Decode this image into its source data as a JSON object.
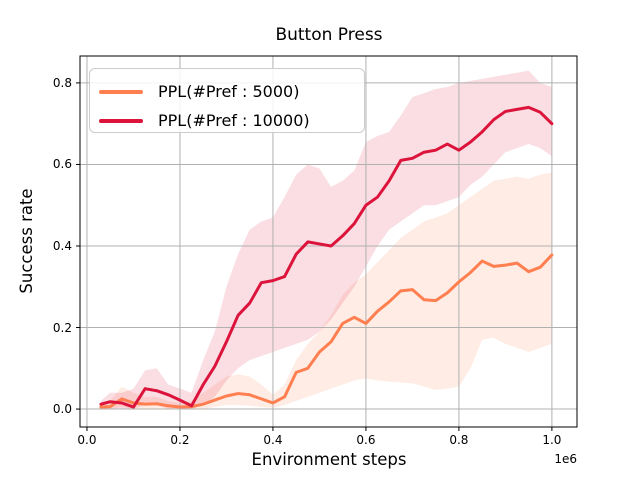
{
  "chart_data": {
    "type": "line",
    "title": "Button Press",
    "xlabel": "Environment steps",
    "ylabel": "Success rate",
    "x_offset_label": "1e6",
    "x_units": "millions of environment steps",
    "xlim": [
      -0.015,
      1.054
    ],
    "ylim": [
      -0.044,
      0.866
    ],
    "xticks": {
      "values": [
        0.0,
        0.2,
        0.4,
        0.6,
        0.8,
        1.0
      ],
      "labels": [
        "0.0",
        "0.2",
        "0.4",
        "0.6",
        "0.8",
        "1.0"
      ]
    },
    "yticks": {
      "values": [
        0.0,
        0.2,
        0.4,
        0.6,
        0.8
      ],
      "labels": [
        "0.0",
        "0.2",
        "0.4",
        "0.6",
        "0.8"
      ]
    },
    "grid": true,
    "grid_color": "#b0b0b0",
    "spine_color": "#000000",
    "legend": {
      "position": "upper left"
    },
    "x": [
      0.03,
      0.05,
      0.075,
      0.1,
      0.125,
      0.15,
      0.175,
      0.2,
      0.225,
      0.25,
      0.275,
      0.3,
      0.325,
      0.35,
      0.375,
      0.4,
      0.425,
      0.45,
      0.475,
      0.5,
      0.525,
      0.55,
      0.575,
      0.6,
      0.625,
      0.65,
      0.675,
      0.7,
      0.725,
      0.75,
      0.775,
      0.8,
      0.825,
      0.85,
      0.875,
      0.9,
      0.925,
      0.95,
      0.975,
      1.0
    ],
    "series": [
      {
        "name": "PPL(#Pref : 5000)",
        "color": "#FF7F50",
        "band_alpha": 0.15,
        "y": [
          0.005,
          0.006,
          0.025,
          0.015,
          0.012,
          0.013,
          0.008,
          0.005,
          0.006,
          0.012,
          0.022,
          0.032,
          0.038,
          0.035,
          0.025,
          0.015,
          0.03,
          0.09,
          0.1,
          0.14,
          0.165,
          0.21,
          0.225,
          0.21,
          0.24,
          0.263,
          0.29,
          0.293,
          0.268,
          0.266,
          0.285,
          0.312,
          0.335,
          0.363,
          0.35,
          0.353,
          0.358,
          0.337,
          0.348,
          0.378
        ],
        "band_low": [
          0.0,
          0.0,
          0.005,
          0.0,
          0.0,
          0.0,
          0.0,
          0.0,
          0.0,
          0.0,
          0.005,
          0.01,
          0.01,
          0.008,
          0.005,
          0.003,
          0.01,
          0.02,
          0.03,
          0.04,
          0.05,
          0.06,
          0.07,
          0.075,
          0.07,
          0.067,
          0.065,
          0.063,
          0.055,
          0.047,
          0.05,
          0.055,
          0.1,
          0.17,
          0.175,
          0.16,
          0.15,
          0.14,
          0.15,
          0.16
        ],
        "band_high": [
          0.01,
          0.02,
          0.055,
          0.04,
          0.03,
          0.03,
          0.02,
          0.015,
          0.02,
          0.04,
          0.06,
          0.08,
          0.085,
          0.08,
          0.06,
          0.035,
          0.06,
          0.12,
          0.16,
          0.19,
          0.23,
          0.28,
          0.31,
          0.33,
          0.36,
          0.39,
          0.42,
          0.44,
          0.46,
          0.47,
          0.48,
          0.5,
          0.52,
          0.54,
          0.56,
          0.565,
          0.57,
          0.565,
          0.575,
          0.58
        ]
      },
      {
        "name": "PPL(#Pref : 10000)",
        "color": "#DC143C",
        "band_alpha": 0.14,
        "y": [
          0.012,
          0.018,
          0.015,
          0.005,
          0.05,
          0.045,
          0.035,
          0.022,
          0.008,
          0.06,
          0.105,
          0.165,
          0.23,
          0.26,
          0.31,
          0.315,
          0.325,
          0.38,
          0.41,
          0.405,
          0.4,
          0.425,
          0.455,
          0.5,
          0.52,
          0.56,
          0.61,
          0.615,
          0.63,
          0.635,
          0.65,
          0.635,
          0.655,
          0.68,
          0.71,
          0.73,
          0.735,
          0.74,
          0.728,
          0.7
        ],
        "band_low": [
          0.0,
          0.0,
          0.0,
          0.0,
          0.01,
          0.01,
          0.0,
          0.0,
          0.0,
          0.01,
          0.03,
          0.07,
          0.1,
          0.12,
          0.13,
          0.14,
          0.15,
          0.16,
          0.17,
          0.19,
          0.22,
          0.26,
          0.3,
          0.35,
          0.4,
          0.44,
          0.46,
          0.48,
          0.5,
          0.5,
          0.51,
          0.52,
          0.55,
          0.57,
          0.6,
          0.63,
          0.64,
          0.65,
          0.64,
          0.62
        ],
        "band_high": [
          0.02,
          0.04,
          0.04,
          0.05,
          0.095,
          0.1,
          0.06,
          0.05,
          0.04,
          0.12,
          0.19,
          0.3,
          0.38,
          0.44,
          0.46,
          0.47,
          0.52,
          0.575,
          0.6,
          0.59,
          0.545,
          0.56,
          0.585,
          0.655,
          0.67,
          0.68,
          0.72,
          0.765,
          0.775,
          0.785,
          0.79,
          0.8,
          0.805,
          0.81,
          0.815,
          0.82,
          0.825,
          0.83,
          0.8,
          0.79
        ]
      }
    ]
  }
}
